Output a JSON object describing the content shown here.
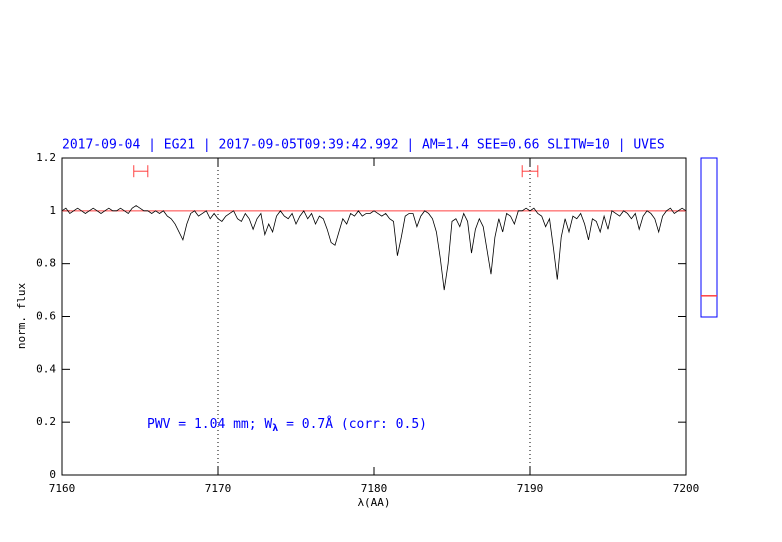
{
  "chart_data": {
    "type": "line",
    "title": "2017-09-04 | EG21 | 2017-09-05T09:39:42.992 | AM=1.4 SEE=0.66 SLITW=10 | UVES",
    "xlabel": "λ(AA)",
    "ylabel": "norm. flux",
    "annotation": {
      "parts": [
        "PWV = 1.04 mm; W",
        "λ",
        " = 0.7Å (corr: 0.5)"
      ],
      "color": "#0000ff"
    },
    "color": "#000000",
    "continuum": {
      "value": 1,
      "color": "#ff4040"
    },
    "vlines": [
      7170,
      7190
    ],
    "windows": [
      {
        "x": [
          7164.6,
          7165.5
        ],
        "y": 1.15
      },
      {
        "x": [
          7189.5,
          7190.5
        ],
        "y": 1.15
      }
    ],
    "window_color": "#ff4040",
    "side_indicator": {
      "ylim": [
        0.6,
        1.2
      ],
      "value": 0.68,
      "frame_color": "#0000ff",
      "color": "#ff4040"
    },
    "xlim": [
      7160,
      7200
    ],
    "ylim": [
      0,
      1.2
    ],
    "xticks": [
      7160,
      7170,
      7180,
      7190,
      7200
    ],
    "yticks": [
      0,
      0.2,
      0.4,
      0.6,
      0.8,
      1,
      1.2
    ],
    "x": [
      7160,
      7160.25,
      7160.5,
      7160.75,
      7161,
      7161.25,
      7161.5,
      7161.75,
      7162,
      7162.25,
      7162.5,
      7162.75,
      7163,
      7163.25,
      7163.5,
      7163.75,
      7164,
      7164.25,
      7164.5,
      7164.75,
      7165,
      7165.25,
      7165.5,
      7165.75,
      7166,
      7166.25,
      7166.5,
      7166.75,
      7167,
      7167.25,
      7167.5,
      7167.75,
      7168,
      7168.25,
      7168.5,
      7168.75,
      7169,
      7169.25,
      7169.5,
      7169.75,
      7170,
      7170.25,
      7170.5,
      7170.75,
      7171,
      7171.25,
      7171.5,
      7171.75,
      7172,
      7172.25,
      7172.5,
      7172.75,
      7173,
      7173.25,
      7173.5,
      7173.75,
      7174,
      7174.25,
      7174.5,
      7174.75,
      7175,
      7175.25,
      7175.5,
      7175.75,
      7176,
      7176.25,
      7176.5,
      7176.75,
      7177,
      7177.25,
      7177.5,
      7177.75,
      7178,
      7178.25,
      7178.5,
      7178.75,
      7179,
      7179.25,
      7179.5,
      7179.75,
      7180,
      7180.25,
      7180.5,
      7180.75,
      7181,
      7181.25,
      7181.5,
      7181.75,
      7182,
      7182.25,
      7182.5,
      7182.75,
      7183,
      7183.25,
      7183.5,
      7183.75,
      7184,
      7184.25,
      7184.5,
      7184.75,
      7185,
      7185.25,
      7185.5,
      7185.75,
      7186,
      7186.25,
      7186.5,
      7186.75,
      7187,
      7187.25,
      7187.5,
      7187.75,
      7188,
      7188.25,
      7188.5,
      7188.75,
      7189,
      7189.25,
      7189.5,
      7189.75,
      7190,
      7190.25,
      7190.5,
      7190.75,
      7191,
      7191.25,
      7191.5,
      7191.75,
      7192,
      7192.25,
      7192.5,
      7192.75,
      7193,
      7193.25,
      7193.5,
      7193.75,
      7194,
      7194.25,
      7194.5,
      7194.75,
      7195,
      7195.25,
      7195.5,
      7195.75,
      7196,
      7196.25,
      7196.5,
      7196.75,
      7197,
      7197.25,
      7197.5,
      7197.75,
      7198,
      7198.25,
      7198.5,
      7198.75,
      7199,
      7199.25,
      7199.5,
      7199.75,
      7200
    ],
    "values": [
      1.0,
      1.01,
      0.99,
      1.0,
      1.01,
      1.0,
      0.99,
      1.0,
      1.01,
      1.0,
      0.99,
      1.0,
      1.01,
      1.0,
      1.0,
      1.01,
      1.0,
      0.99,
      1.01,
      1.02,
      1.01,
      1.0,
      1.0,
      0.99,
      1.0,
      0.99,
      1.0,
      0.98,
      0.97,
      0.95,
      0.92,
      0.89,
      0.95,
      0.99,
      1.0,
      0.98,
      0.99,
      1.0,
      0.97,
      0.99,
      0.97,
      0.96,
      0.98,
      0.99,
      1.0,
      0.97,
      0.96,
      0.99,
      0.97,
      0.93,
      0.97,
      0.99,
      0.91,
      0.95,
      0.92,
      0.98,
      1.0,
      0.98,
      0.97,
      0.99,
      0.95,
      0.98,
      1.0,
      0.97,
      0.99,
      0.95,
      0.98,
      0.97,
      0.93,
      0.88,
      0.87,
      0.92,
      0.97,
      0.95,
      0.99,
      0.98,
      1.0,
      0.98,
      0.99,
      0.99,
      1.0,
      0.99,
      0.98,
      0.99,
      0.97,
      0.96,
      0.83,
      0.9,
      0.98,
      0.99,
      0.99,
      0.94,
      0.98,
      1.0,
      0.99,
      0.97,
      0.92,
      0.82,
      0.7,
      0.8,
      0.96,
      0.97,
      0.94,
      0.99,
      0.96,
      0.84,
      0.93,
      0.97,
      0.94,
      0.85,
      0.76,
      0.9,
      0.97,
      0.92,
      0.99,
      0.98,
      0.95,
      1.0,
      1.0,
      1.01,
      1.0,
      1.01,
      0.99,
      0.98,
      0.94,
      0.97,
      0.86,
      0.74,
      0.9,
      0.97,
      0.92,
      0.98,
      0.97,
      0.99,
      0.95,
      0.89,
      0.97,
      0.96,
      0.92,
      0.98,
      0.93,
      1.0,
      0.99,
      0.98,
      1.0,
      0.99,
      0.97,
      0.99,
      0.93,
      0.98,
      1.0,
      0.99,
      0.97,
      0.92,
      0.98,
      1.0,
      1.01,
      0.99,
      1.0,
      1.01,
      1.0
    ]
  }
}
